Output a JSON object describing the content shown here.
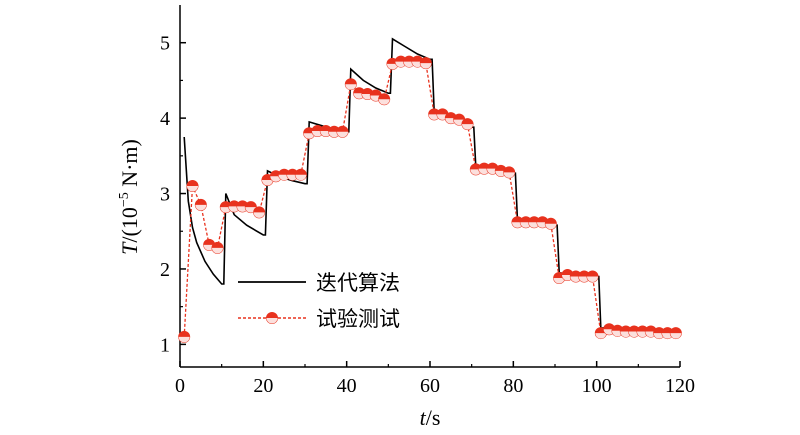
{
  "chart_data": {
    "type": "line",
    "title": "",
    "xlabel": {
      "var": "t",
      "unit": "/s"
    },
    "ylabel": {
      "var": "T",
      "unit_prefix": "/(10",
      "exponent": "−5",
      "unit_suffix": " N·m)"
    },
    "xlim": [
      0,
      120
    ],
    "ylim": [
      0.7,
      5.5
    ],
    "xticks": [
      0,
      20,
      40,
      60,
      80,
      100,
      120
    ],
    "xtick_labels": [
      "0",
      "20",
      "40",
      "60",
      "80",
      "100",
      "120"
    ],
    "yticks": [
      1,
      2,
      3,
      4,
      5
    ],
    "ytick_labels": [
      "1",
      "2",
      "3",
      "4",
      "5"
    ],
    "grid": false,
    "legend_position": "center-left",
    "series": [
      {
        "name": "迭代算法",
        "style": "solid",
        "color": "#000000",
        "x": [
          1,
          2,
          3,
          4,
          6,
          8,
          10,
          10.5,
          11,
          13,
          16,
          20,
          20.5,
          21,
          24,
          27,
          30,
          30.5,
          31,
          34,
          37,
          40,
          40.5,
          41,
          44,
          47,
          50,
          50.5,
          51,
          54,
          57,
          60,
          60.5,
          61,
          64,
          67,
          70,
          70.5,
          71,
          74,
          77,
          80,
          80.5,
          81,
          85,
          90,
          90.5,
          91,
          95,
          100,
          100.5,
          101,
          110,
          120
        ],
        "y": [
          3.75,
          2.9,
          2.55,
          2.35,
          2.1,
          1.93,
          1.8,
          1.8,
          3.0,
          2.72,
          2.58,
          2.45,
          2.45,
          3.3,
          3.22,
          3.17,
          3.13,
          3.13,
          3.95,
          3.9,
          3.85,
          3.82,
          3.82,
          4.65,
          4.5,
          4.4,
          4.33,
          4.33,
          5.05,
          4.95,
          4.85,
          4.78,
          4.78,
          4.08,
          3.98,
          3.93,
          3.88,
          3.88,
          3.35,
          3.32,
          3.29,
          3.27,
          3.27,
          2.63,
          2.6,
          2.58,
          2.58,
          1.95,
          1.91,
          1.9,
          1.9,
          1.22,
          1.2,
          1.19
        ]
      },
      {
        "name": "试验测试",
        "style": "dashed",
        "marker": "circle",
        "color": "#e8321e",
        "x": [
          1,
          3,
          5,
          7,
          9,
          11,
          13,
          15,
          17,
          19,
          21,
          23,
          25,
          27,
          29,
          31,
          33,
          35,
          37,
          39,
          41,
          43,
          45,
          47,
          49,
          51,
          53,
          55,
          57,
          59,
          61,
          63,
          65,
          67,
          69,
          71,
          73,
          75,
          77,
          79,
          81,
          83,
          85,
          87,
          89,
          91,
          93,
          95,
          97,
          99,
          101,
          103,
          105,
          107,
          109,
          111,
          113,
          115,
          117,
          119
        ],
        "y": [
          1.1,
          3.1,
          2.85,
          2.32,
          2.28,
          2.82,
          2.83,
          2.83,
          2.82,
          2.75,
          3.18,
          3.23,
          3.25,
          3.25,
          3.25,
          3.8,
          3.83,
          3.83,
          3.82,
          3.82,
          4.45,
          4.33,
          4.32,
          4.3,
          4.25,
          4.72,
          4.75,
          4.75,
          4.75,
          4.73,
          4.05,
          4.05,
          4.0,
          3.98,
          3.92,
          3.32,
          3.33,
          3.33,
          3.3,
          3.28,
          2.62,
          2.62,
          2.62,
          2.62,
          2.6,
          1.88,
          1.92,
          1.9,
          1.9,
          1.9,
          1.15,
          1.2,
          1.18,
          1.17,
          1.17,
          1.17,
          1.17,
          1.15,
          1.15,
          1.15
        ]
      }
    ]
  }
}
